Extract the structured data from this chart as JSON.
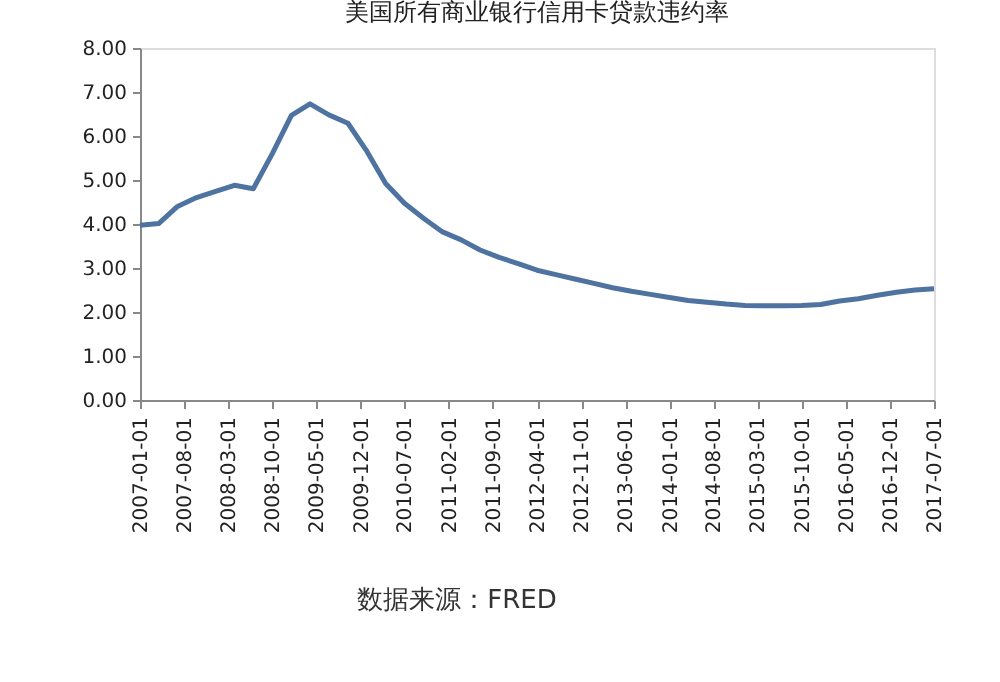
{
  "chart_data": {
    "type": "line",
    "title": "美国所有商业银行信用卡贷款违约率",
    "x": [
      "2007-01-01",
      "2007-04-01",
      "2007-07-01",
      "2007-10-01",
      "2008-01-01",
      "2008-04-01",
      "2008-07-01",
      "2008-10-01",
      "2009-01-01",
      "2009-04-01",
      "2009-07-01",
      "2009-10-01",
      "2010-01-01",
      "2010-04-01",
      "2010-07-01",
      "2010-10-01",
      "2011-01-01",
      "2011-04-01",
      "2011-07-01",
      "2011-10-01",
      "2012-01-01",
      "2012-04-01",
      "2012-07-01",
      "2012-10-01",
      "2013-01-01",
      "2013-04-01",
      "2013-07-01",
      "2013-10-01",
      "2014-01-01",
      "2014-04-01",
      "2014-07-01",
      "2014-10-01",
      "2015-01-01",
      "2015-04-01",
      "2015-07-01",
      "2015-10-01",
      "2016-01-01",
      "2016-04-01",
      "2016-07-01",
      "2016-10-01",
      "2017-01-01",
      "2017-04-01",
      "2017-07-01"
    ],
    "series": [
      {
        "color": "#4f73a0",
        "values": [
          3.97,
          4.01,
          4.4,
          4.6,
          4.74,
          4.88,
          4.8,
          5.6,
          6.47,
          6.73,
          6.48,
          6.29,
          5.65,
          4.92,
          4.47,
          4.13,
          3.82,
          3.64,
          3.41,
          3.24,
          3.1,
          2.95,
          2.85,
          2.75,
          2.65,
          2.55,
          2.47,
          2.4,
          2.33,
          2.26,
          2.22,
          2.18,
          2.15,
          2.14,
          2.14,
          2.15,
          2.17,
          2.25,
          2.3,
          2.38,
          2.45,
          2.5,
          2.53
        ]
      }
    ],
    "xlim": [
      "2007-01-01",
      "2017-07-01"
    ],
    "xticks": [
      "2007-01-01",
      "2007-08-01",
      "2008-03-01",
      "2008-10-01",
      "2009-05-01",
      "2009-12-01",
      "2010-07-01",
      "2011-02-01",
      "2011-09-01",
      "2012-04-01",
      "2012-11-01",
      "2013-06-01",
      "2014-01-01",
      "2014-08-01",
      "2015-03-01",
      "2015-10-01",
      "2016-05-01",
      "2016-12-01",
      "2017-07-01"
    ],
    "ylim": [
      0,
      8
    ],
    "yticks": [
      {
        "value": 0,
        "label": "0.00"
      },
      {
        "value": 1,
        "label": "1.00"
      },
      {
        "value": 2,
        "label": "2.00"
      },
      {
        "value": 3,
        "label": "3.00"
      },
      {
        "value": 4,
        "label": "4.00"
      },
      {
        "value": 5,
        "label": "5.00"
      },
      {
        "value": 6,
        "label": "6.00"
      },
      {
        "value": 7,
        "label": "7.00"
      },
      {
        "value": 8,
        "label": "8.00"
      }
    ],
    "annotations": [
      "数据来源：FRED"
    ],
    "grid": false,
    "legend": false,
    "marker": "none",
    "line_style": "solid"
  }
}
